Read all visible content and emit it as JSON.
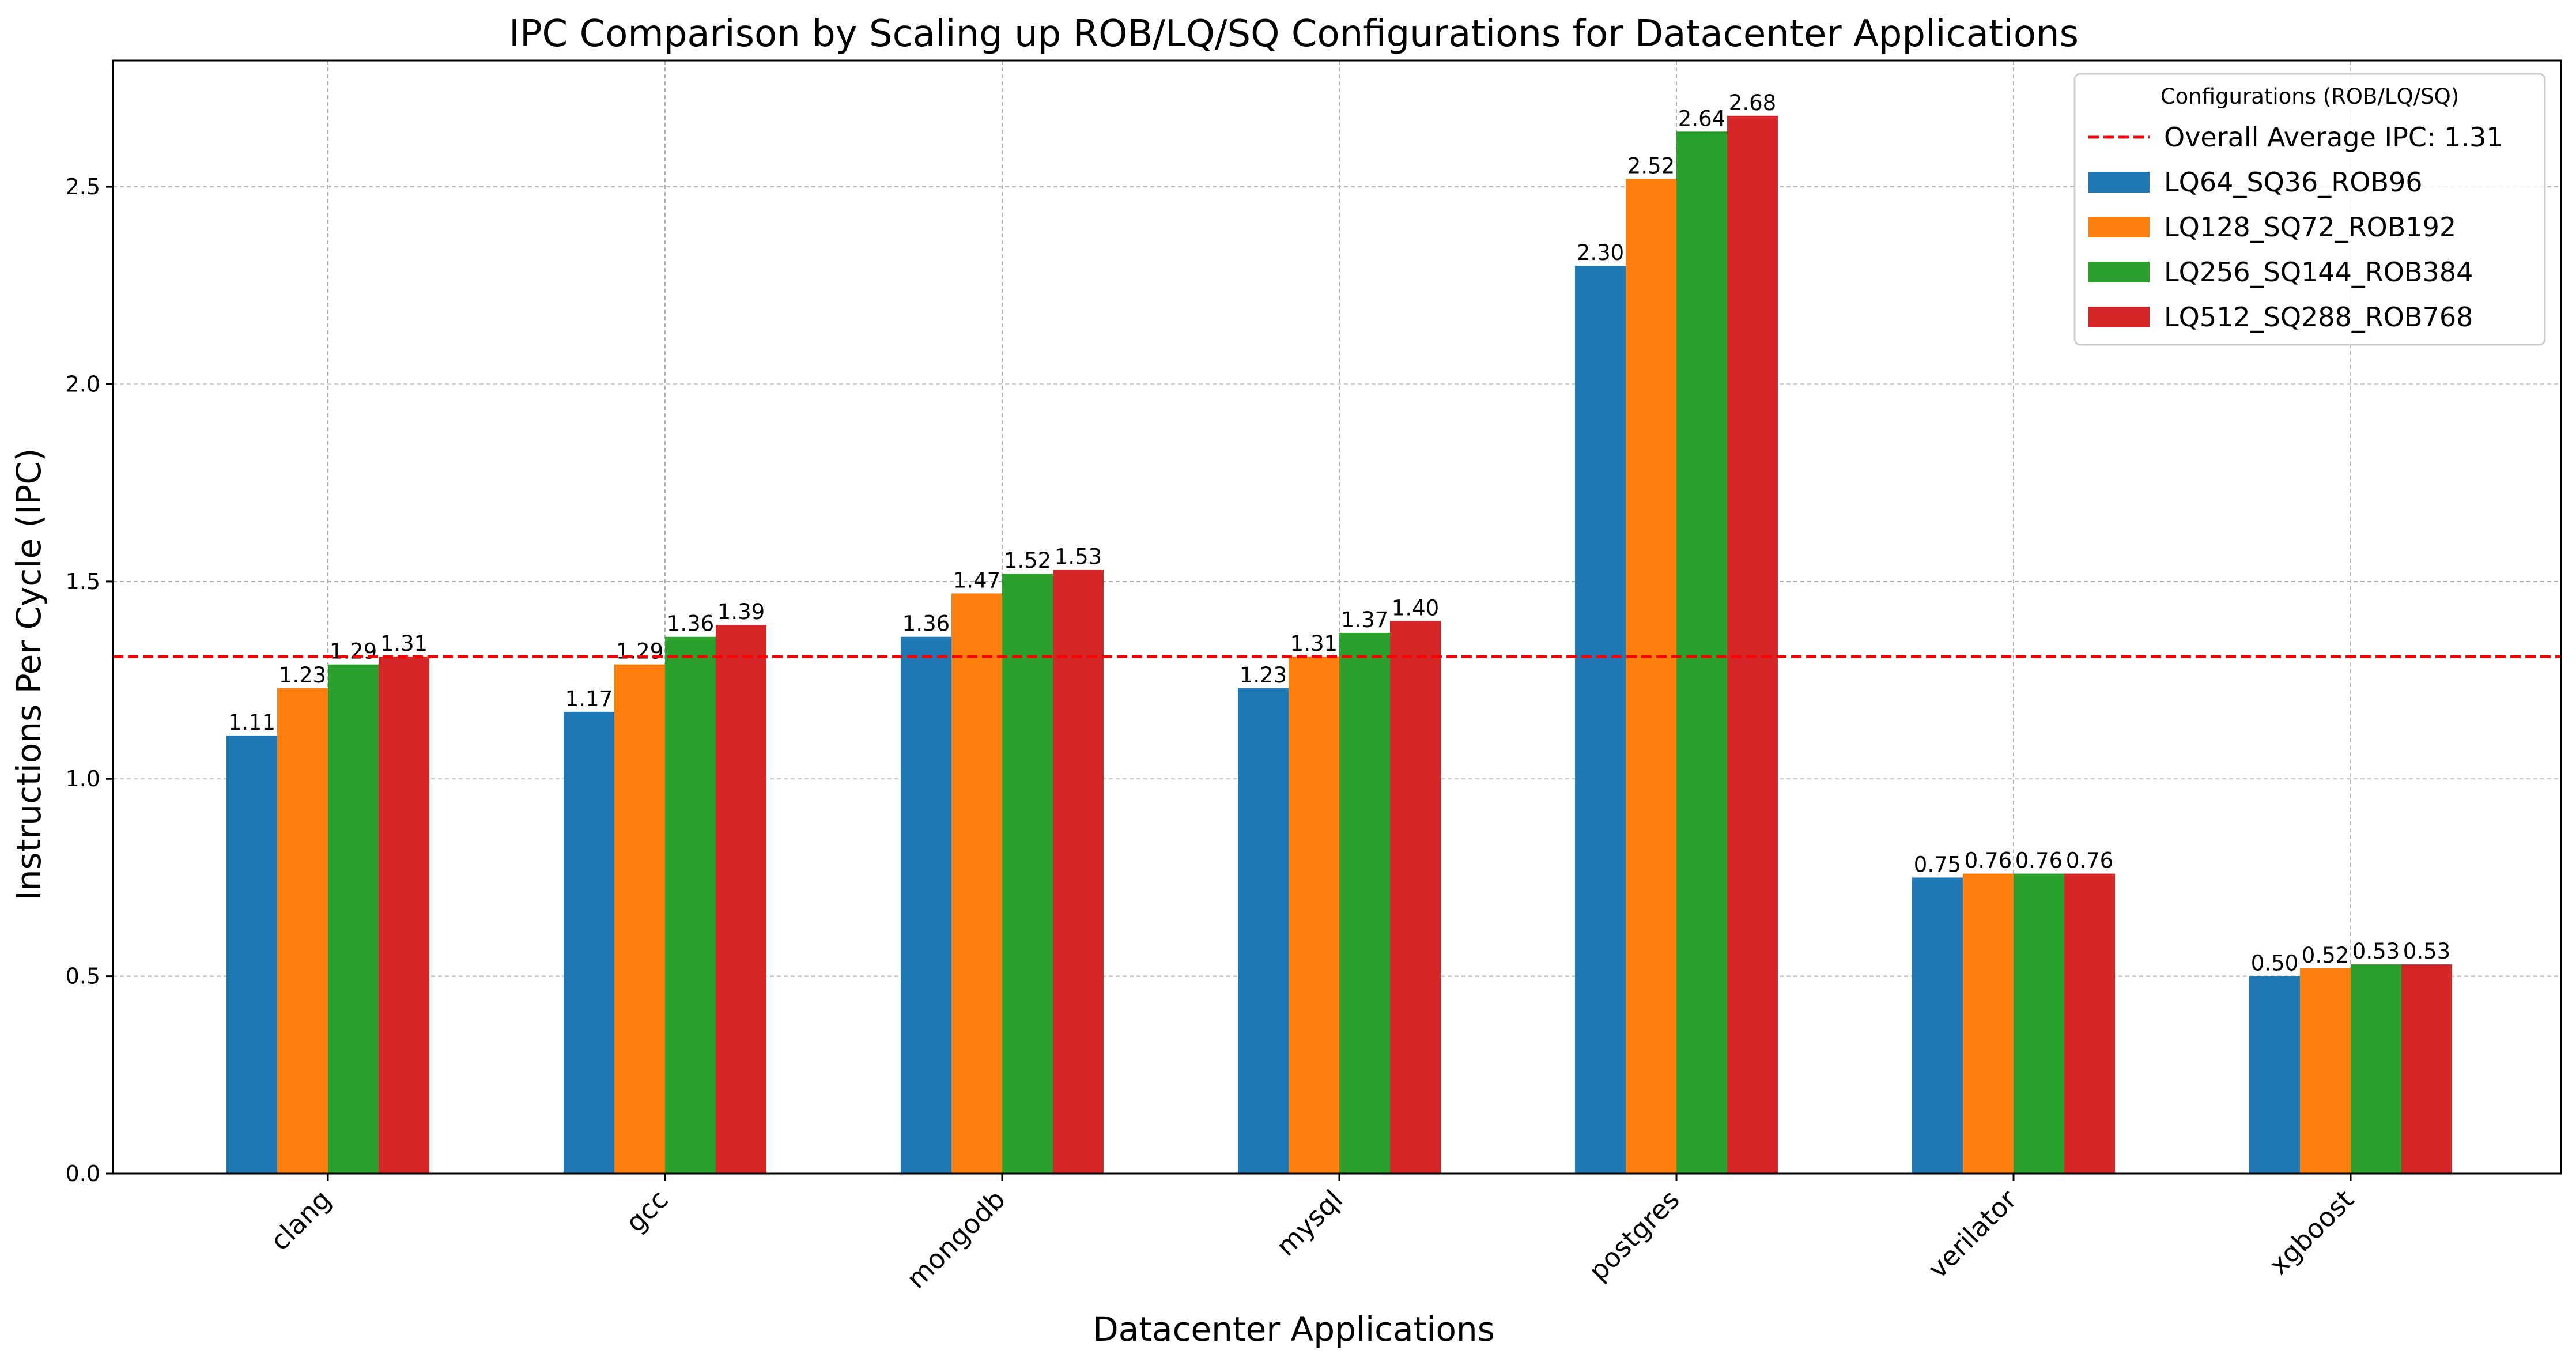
{
  "chart_data": {
    "type": "bar",
    "title": "IPC Comparison by Scaling up ROB/LQ/SQ Configurations for Datacenter Applications",
    "xlabel": "Datacenter Applications",
    "ylabel": "Instructions Per Cycle (IPC)",
    "categories": [
      "clang",
      "gcc",
      "mongodb",
      "mysql",
      "postgres",
      "verilator",
      "xgboost"
    ],
    "series": [
      {
        "name": "LQ64_SQ36_ROB96",
        "color": "#1f77b4",
        "values": [
          1.11,
          1.17,
          1.36,
          1.23,
          2.3,
          0.75,
          0.5
        ],
        "labels": [
          "1.11",
          "1.17",
          "1.36",
          "1.23",
          "2.30",
          "0.75",
          "0.50"
        ]
      },
      {
        "name": "LQ128_SQ72_ROB192",
        "color": "#ff7f0e",
        "values": [
          1.23,
          1.29,
          1.47,
          1.31,
          2.52,
          0.76,
          0.52
        ],
        "labels": [
          "1.23",
          "1.29",
          "1.47",
          "1.31",
          "2.52",
          "0.76",
          "0.52"
        ]
      },
      {
        "name": "LQ256_SQ144_ROB384",
        "color": "#2ca02c",
        "values": [
          1.29,
          1.36,
          1.52,
          1.37,
          2.64,
          0.76,
          0.53
        ],
        "labels": [
          "1.29",
          "1.36",
          "1.52",
          "1.37",
          "2.64",
          "0.76",
          "0.53"
        ]
      },
      {
        "name": "LQ512_SQ288_ROB768",
        "color": "#d62728",
        "values": [
          1.31,
          1.39,
          1.53,
          1.4,
          2.68,
          0.76,
          0.53
        ],
        "labels": [
          "1.31",
          "1.39",
          "1.53",
          "1.40",
          "2.68",
          "0.76",
          "0.53"
        ]
      }
    ],
    "reference_line": {
      "label": "Overall Average IPC: 1.31",
      "value": 1.31,
      "color": "#ff0000",
      "style": "dashed"
    },
    "ylim": [
      0,
      2.82
    ],
    "yticks": [
      0.0,
      0.5,
      1.0,
      1.5,
      2.0,
      2.5
    ],
    "ytick_labels": [
      "0.0",
      "0.5",
      "1.0",
      "1.5",
      "2.0",
      "2.5"
    ],
    "grid": true,
    "legend": {
      "title": "Configurations (ROB/LQ/SQ)",
      "placement": "top-right"
    }
  }
}
